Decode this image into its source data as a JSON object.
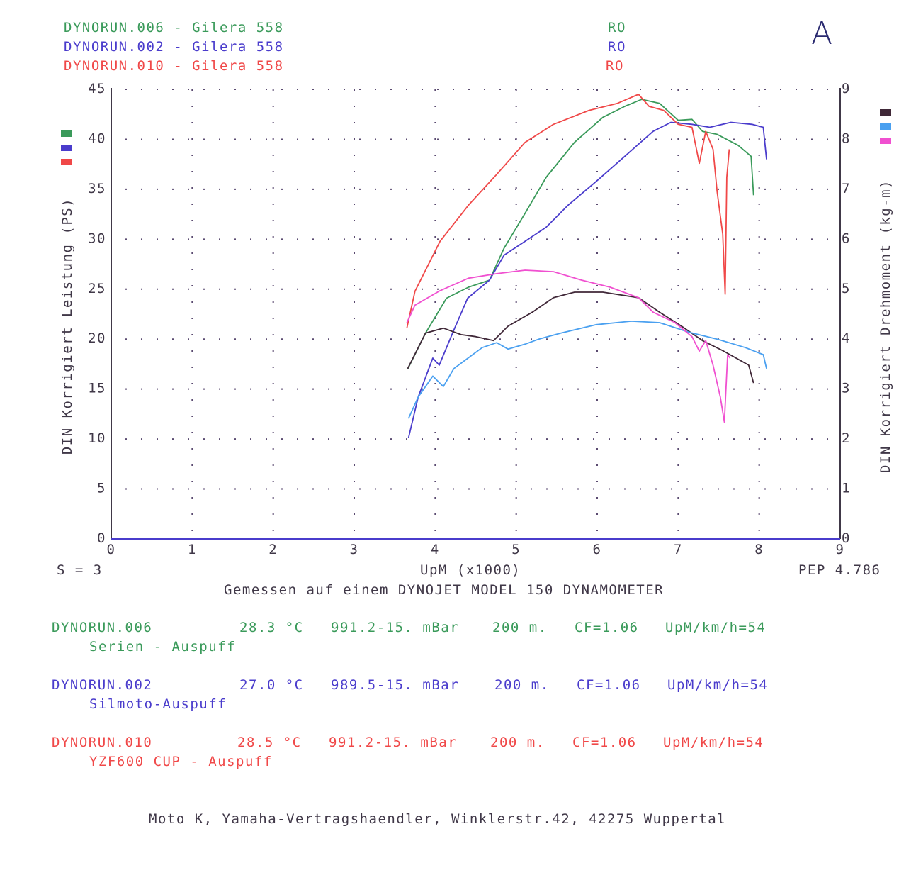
{
  "header": {
    "runs": [
      {
        "label": "DYNORUN.006 - Gilera 558",
        "code": "RO",
        "color": "#3a9a5a"
      },
      {
        "label": "DYNORUN.002 - Gilera 558",
        "code": "RO",
        "color": "#4a3ccc"
      },
      {
        "label": "DYNORUN.010 - Gilera 558",
        "code": "RO",
        "color": "#f04848"
      }
    ],
    "mark": "A"
  },
  "footer": {
    "smoothing": "S = 3",
    "pep": "PEP 4.786",
    "dyno": "Gemessen auf einem DYNOJET MODEL 150 DYNAMOMETER",
    "address": "Moto K, Yamaha-Vertragshaendler, Winklerstr.42, 42275 Wuppertal"
  },
  "run_details": [
    {
      "name": "DYNORUN.006",
      "temp": "28.3 °C",
      "pressure": "991.2-15. mBar",
      "altitude": "200 m.",
      "cf": "CF=1.06",
      "ratio": "UpM/km/h=54",
      "desc": "Serien - Auspuff",
      "color": "#3a9a5a"
    },
    {
      "name": "DYNORUN.002",
      "temp": "27.0 °C",
      "pressure": "989.5-15. mBar",
      "altitude": "200 m.",
      "cf": "CF=1.06",
      "ratio": "UpM/km/h=54",
      "desc": "Silmoto-Auspuff",
      "color": "#4a3ccc"
    },
    {
      "name": "DYNORUN.010",
      "temp": "28.5 °C",
      "pressure": "991.2-15. mBar",
      "altitude": "200 m.",
      "cf": "CF=1.06",
      "ratio": "UpM/km/h=54",
      "desc": "YZF600 CUP - Auspuff",
      "color": "#f04848"
    }
  ],
  "chart_data": {
    "type": "line",
    "xlabel": "UpM (x1000)",
    "ylabel": "DIN Korrigiert Leistung (PS)",
    "y2label": "DIN Korrigiert Drehmoment (kg-m)",
    "xlim": [
      0,
      9
    ],
    "ylim": [
      0,
      45
    ],
    "y2lim": [
      0,
      9
    ],
    "xticks": [
      "0",
      "1",
      "2",
      "3",
      "4",
      "5",
      "6",
      "7",
      "8",
      "9"
    ],
    "yticks": [
      "0",
      "5",
      "10",
      "15",
      "20",
      "25",
      "30",
      "35",
      "40",
      "45"
    ],
    "y2ticks": [
      "0",
      "1",
      "2",
      "3",
      "4",
      "5",
      "6",
      "7",
      "8",
      "9"
    ],
    "grid": true,
    "power_series": [
      {
        "name": "DYNORUN.006 power",
        "color": "#3a9a5a",
        "x": [
          3.66,
          3.88,
          4.14,
          4.41,
          4.67,
          4.85,
          5.11,
          5.37,
          5.72,
          6.07,
          6.34,
          6.55,
          6.77,
          7.0,
          7.17,
          7.3,
          7.48,
          7.74,
          7.9,
          7.93
        ],
        "y": [
          17.0,
          20.6,
          24.1,
          25.2,
          25.9,
          29.1,
          32.6,
          36.2,
          39.7,
          42.2,
          43.3,
          44.0,
          43.6,
          41.9,
          42.0,
          40.8,
          40.5,
          39.4,
          38.3,
          34.4
        ]
      },
      {
        "name": "DYNORUN.002 power",
        "color": "#4a3ccc",
        "x": [
          3.67,
          3.79,
          3.97,
          4.05,
          4.23,
          4.4,
          4.67,
          4.85,
          5.11,
          5.37,
          5.64,
          5.99,
          6.34,
          6.69,
          6.91,
          7.17,
          7.39,
          7.65,
          7.91,
          8.05,
          8.09
        ],
        "y": [
          10.1,
          14.2,
          18.1,
          17.4,
          20.9,
          24.1,
          25.9,
          28.4,
          29.8,
          31.2,
          33.4,
          35.8,
          38.3,
          40.8,
          41.7,
          41.5,
          41.2,
          41.7,
          41.5,
          41.2,
          38.0
        ]
      },
      {
        "name": "DYNORUN.010 power",
        "color": "#f04848",
        "x": [
          3.65,
          3.75,
          4.06,
          4.41,
          4.76,
          5.11,
          5.46,
          5.9,
          6.25,
          6.51,
          6.64,
          6.82,
          7.0,
          7.17,
          7.26,
          7.34,
          7.43,
          7.48,
          7.55,
          7.58,
          7.6,
          7.63
        ],
        "y": [
          21.1,
          24.8,
          29.8,
          33.4,
          36.5,
          39.7,
          41.5,
          42.9,
          43.6,
          44.5,
          43.3,
          42.9,
          41.5,
          41.2,
          37.6,
          40.8,
          39.0,
          34.8,
          30.5,
          24.5,
          36.2,
          39.0
        ]
      }
    ],
    "torque_series": [
      {
        "name": "DYNORUN.006 torque",
        "color": "#402838",
        "x": [
          3.66,
          3.88,
          4.1,
          4.32,
          4.5,
          4.72,
          4.9,
          5.2,
          5.46,
          5.72,
          6.07,
          6.51,
          6.77,
          7.04,
          7.3,
          7.56,
          7.87,
          7.93
        ],
        "y": [
          3.41,
          4.12,
          4.22,
          4.09,
          4.05,
          3.97,
          4.26,
          4.54,
          4.83,
          4.94,
          4.94,
          4.83,
          4.54,
          4.26,
          3.97,
          3.76,
          3.48,
          3.12
        ]
      },
      {
        "name": "DYNORUN.002 torque",
        "color": "#4aa0f0",
        "x": [
          3.67,
          3.79,
          3.97,
          4.1,
          4.23,
          4.58,
          4.76,
          4.9,
          5.11,
          5.28,
          5.55,
          5.99,
          6.42,
          6.77,
          7.13,
          7.48,
          7.83,
          8.05,
          8.09
        ],
        "y": [
          2.41,
          2.84,
          3.26,
          3.05,
          3.41,
          3.83,
          3.93,
          3.8,
          3.9,
          4.0,
          4.12,
          4.29,
          4.36,
          4.33,
          4.14,
          4.0,
          3.83,
          3.69,
          3.41
        ]
      },
      {
        "name": "DYNORUN.010 torque",
        "color": "#f050d0",
        "x": [
          3.65,
          3.75,
          4.06,
          4.41,
          4.76,
          5.11,
          5.46,
          5.81,
          6.16,
          6.51,
          6.69,
          6.96,
          7.17,
          7.26,
          7.34,
          7.43,
          7.52,
          7.57,
          7.61,
          7.64
        ],
        "y": [
          4.33,
          4.68,
          4.97,
          5.22,
          5.31,
          5.38,
          5.35,
          5.18,
          5.04,
          4.83,
          4.54,
          4.33,
          4.05,
          3.76,
          3.97,
          3.48,
          2.84,
          2.34,
          3.69,
          3.62
        ]
      }
    ]
  }
}
